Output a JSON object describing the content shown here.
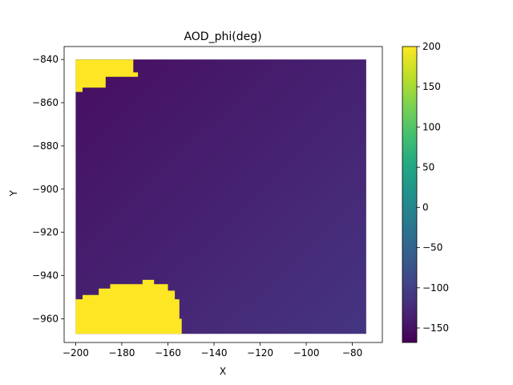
{
  "chart_data": {
    "type": "heatmap",
    "title": "AOD_phi(deg)",
    "xlabel": "X",
    "ylabel": "Y",
    "xlim": [
      -205,
      -67
    ],
    "ylim": [
      -971,
      -834
    ],
    "x_ticks": [
      -200,
      -180,
      -160,
      -140,
      -120,
      -100,
      -80
    ],
    "x_tick_labels": [
      "−200",
      "−180",
      "−160",
      "−140",
      "−120",
      "−100",
      "−80"
    ],
    "y_ticks": [
      -840,
      -860,
      -880,
      -900,
      -920,
      -940,
      -960
    ],
    "y_tick_labels": [
      "−840",
      "−860",
      "−880",
      "−900",
      "−920",
      "−940",
      "−960"
    ],
    "grid": false,
    "colormap": "viridis",
    "colorbar": {
      "range": [
        -168,
        200
      ],
      "ticks": [
        200,
        150,
        100,
        50,
        0,
        -50,
        -100,
        -150
      ],
      "tick_labels": [
        "200",
        "150",
        "100",
        "50",
        "0",
        "−50",
        "−100",
        "−150"
      ]
    },
    "data_extent": {
      "x": [
        -200,
        -74
      ],
      "y": [
        -967,
        -840
      ]
    },
    "background_field": {
      "description_of_gradient": "linear",
      "value_at_top_left": -160,
      "value_at_bottom_right": -125
    },
    "high_value_regions": [
      {
        "value": 200,
        "polygon": [
          [
            -200,
            -840
          ],
          [
            -175,
            -840
          ],
          [
            -175,
            -846
          ],
          [
            -173,
            -846
          ],
          [
            -173,
            -848
          ],
          [
            -187,
            -848
          ],
          [
            -187,
            -853
          ],
          [
            -197,
            -853
          ],
          [
            -197,
            -855
          ],
          [
            -200,
            -855
          ]
        ]
      },
      {
        "value": 200,
        "polygon": [
          [
            -200,
            -967
          ],
          [
            -154,
            -967
          ],
          [
            -154,
            -960
          ],
          [
            -155,
            -960
          ],
          [
            -155,
            -951
          ],
          [
            -157,
            -951
          ],
          [
            -157,
            -947
          ],
          [
            -160,
            -947
          ],
          [
            -160,
            -944
          ],
          [
            -166,
            -944
          ],
          [
            -166,
            -942
          ],
          [
            -171,
            -942
          ],
          [
            -171,
            -944
          ],
          [
            -185,
            -944
          ],
          [
            -185,
            -946
          ],
          [
            -190,
            -946
          ],
          [
            -190,
            -949
          ],
          [
            -197,
            -949
          ],
          [
            -197,
            -951
          ],
          [
            -200,
            -951
          ]
        ]
      }
    ]
  }
}
